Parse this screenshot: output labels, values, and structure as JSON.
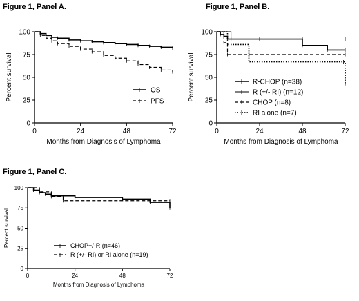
{
  "panels": [
    {
      "title": "Figure 1, Panel A."
    },
    {
      "title": "Figure 1, Panel B."
    },
    {
      "title": "Figure 1, Panel C."
    }
  ],
  "chart_data": [
    {
      "type": "line",
      "subtype": "kaplan-meier",
      "title": "Figure 1, Panel A.",
      "xlabel": "Months from Diagnosis of Lymphoma",
      "ylabel": "Percent survival",
      "xlim": [
        0,
        72
      ],
      "ylim": [
        0,
        100
      ],
      "xticks": [
        0,
        24,
        48,
        72
      ],
      "yticks": [
        0,
        25,
        50,
        75,
        100
      ],
      "grid": false,
      "legend_position": "lower-right",
      "series": [
        {
          "name": "OS",
          "style": "solid",
          "x": [
            0,
            3,
            6,
            9,
            12,
            18,
            24,
            30,
            36,
            42,
            48,
            54,
            60,
            66,
            72
          ],
          "y": [
            100,
            98,
            96,
            94,
            93,
            91,
            90,
            89,
            88,
            87,
            86,
            85,
            84,
            83,
            82
          ]
        },
        {
          "name": "PFS",
          "style": "dashed",
          "x": [
            0,
            3,
            6,
            9,
            12,
            18,
            24,
            30,
            36,
            42,
            48,
            54,
            60,
            66,
            72
          ],
          "y": [
            100,
            96,
            93,
            90,
            87,
            84,
            81,
            78,
            74,
            71,
            68,
            64,
            61,
            58,
            56
          ]
        }
      ]
    },
    {
      "type": "line",
      "subtype": "kaplan-meier",
      "title": "Figure 1, Panel B.",
      "xlabel": "Months from Diagnosis of Lymphoma",
      "ylabel": "Percent survival",
      "xlim": [
        0,
        72
      ],
      "ylim": [
        0,
        100
      ],
      "xticks": [
        0,
        24,
        48,
        72
      ],
      "yticks": [
        0,
        25,
        50,
        75,
        100
      ],
      "grid": false,
      "legend_position": "lower-right",
      "series": [
        {
          "name": "R-CHOP (n=38)",
          "style": "solid",
          "x": [
            0,
            2,
            4,
            6,
            24,
            48,
            62,
            72
          ],
          "y": [
            100,
            97,
            95,
            92,
            92,
            85,
            80,
            80
          ]
        },
        {
          "name": "R (+/- RI) (n=12)",
          "style": "thin",
          "x": [
            0,
            8,
            48,
            72
          ],
          "y": [
            100,
            92,
            92,
            92
          ]
        },
        {
          "name": "CHOP (n=8)",
          "style": "dashed",
          "x": [
            0,
            4,
            6,
            72
          ],
          "y": [
            100,
            88,
            75,
            75
          ]
        },
        {
          "name": "RI alone (n=7)",
          "style": "dotted",
          "x": [
            0,
            6,
            18,
            71,
            72
          ],
          "y": [
            100,
            86,
            67,
            67,
            43
          ]
        }
      ]
    },
    {
      "type": "line",
      "subtype": "kaplan-meier",
      "title": "Figure 1, Panel C.",
      "xlabel": "Months from Diagnosis of Lymphoma",
      "ylabel": "Percent survival",
      "xlim": [
        0,
        72
      ],
      "ylim": [
        0,
        100
      ],
      "xticks": [
        0,
        24,
        48,
        72
      ],
      "yticks": [
        0,
        25,
        50,
        75,
        100
      ],
      "grid": false,
      "legend_position": "lower-center",
      "series": [
        {
          "name": "CHOP+/-R (n=46)",
          "style": "solid",
          "x": [
            0,
            3,
            6,
            9,
            12,
            24,
            48,
            62,
            72
          ],
          "y": [
            100,
            97,
            94,
            92,
            90,
            88,
            86,
            82,
            75
          ]
        },
        {
          "name": "R (+/- RI) or RI alone (n=19)",
          "style": "dashed",
          "x": [
            0,
            6,
            12,
            18,
            72
          ],
          "y": [
            100,
            95,
            89,
            84,
            84
          ]
        }
      ]
    }
  ]
}
